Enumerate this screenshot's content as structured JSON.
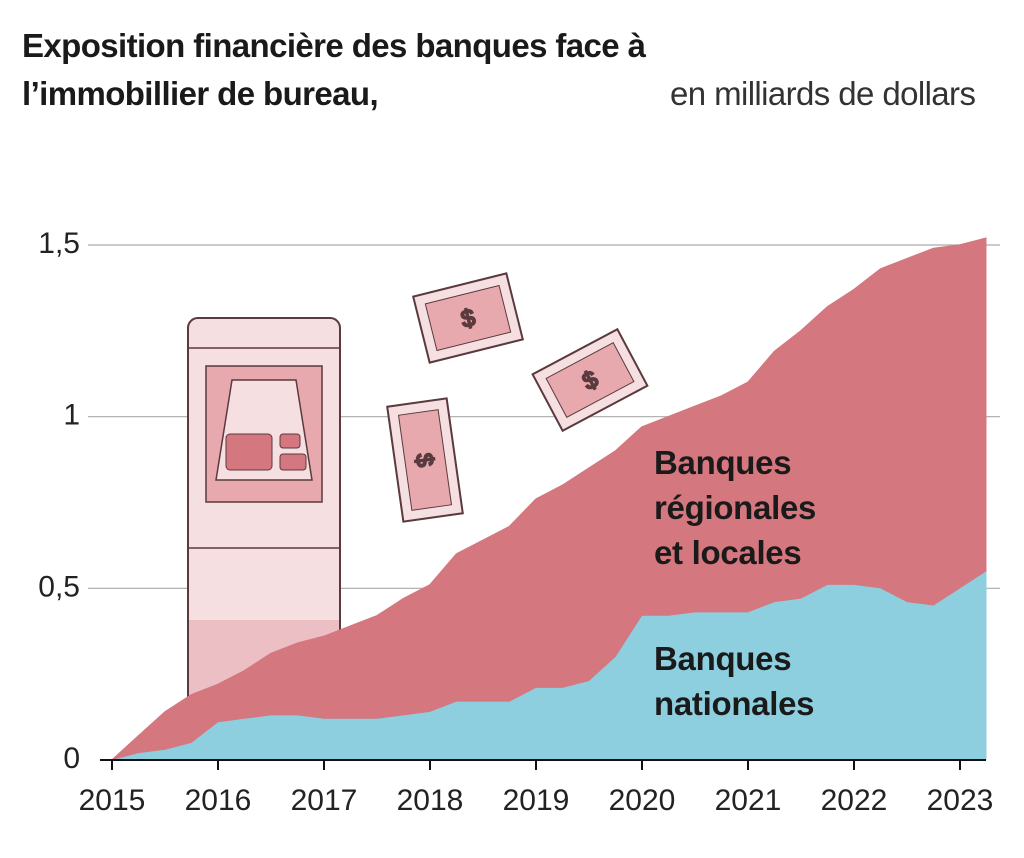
{
  "chart_data": {
    "type": "stacked_area",
    "title": "Exposition financière des banques face à l’immobillier de bureau,",
    "subtitle": "en milliards de dollars",
    "x": [
      2015,
      2015.25,
      2015.5,
      2015.75,
      2016,
      2016.25,
      2016.5,
      2016.75,
      2017,
      2017.25,
      2017.5,
      2017.75,
      2018,
      2018.25,
      2018.5,
      2018.75,
      2019,
      2019.25,
      2019.5,
      2019.75,
      2020,
      2020.25,
      2020.5,
      2020.75,
      2021,
      2021.25,
      2021.5,
      2021.75,
      2022,
      2022.25,
      2022.5,
      2022.75,
      2023,
      2023.25
    ],
    "series": [
      {
        "name": "Banques nationales",
        "color": "#8ecfdf",
        "values": [
          0,
          0.02,
          0.03,
          0.05,
          0.11,
          0.12,
          0.13,
          0.13,
          0.12,
          0.12,
          0.12,
          0.13,
          0.14,
          0.17,
          0.17,
          0.17,
          0.21,
          0.21,
          0.23,
          0.3,
          0.42,
          0.42,
          0.43,
          0.43,
          0.43,
          0.46,
          0.47,
          0.51,
          0.51,
          0.5,
          0.46,
          0.45,
          0.5,
          0.55
        ]
      },
      {
        "name": "Banques régionales et locales",
        "color": "#d4777f",
        "values": [
          0,
          0.05,
          0.11,
          0.14,
          0.11,
          0.14,
          0.18,
          0.21,
          0.24,
          0.27,
          0.3,
          0.34,
          0.37,
          0.43,
          0.47,
          0.51,
          0.55,
          0.59,
          0.62,
          0.6,
          0.55,
          0.58,
          0.6,
          0.63,
          0.67,
          0.73,
          0.78,
          0.81,
          0.86,
          0.93,
          1.0,
          1.04,
          1.0,
          0.97
        ]
      }
    ],
    "xlim": [
      2015,
      2023.25
    ],
    "xticks": [
      2015,
      2016,
      2017,
      2018,
      2019,
      2020,
      2021,
      2022,
      2023
    ],
    "ylim": [
      0,
      1.5
    ],
    "yticks": [
      0,
      {
        "value": 0.5,
        "label": "0,5"
      },
      1,
      {
        "value": 1.5,
        "label": "1,5"
      }
    ],
    "grid": true
  }
}
